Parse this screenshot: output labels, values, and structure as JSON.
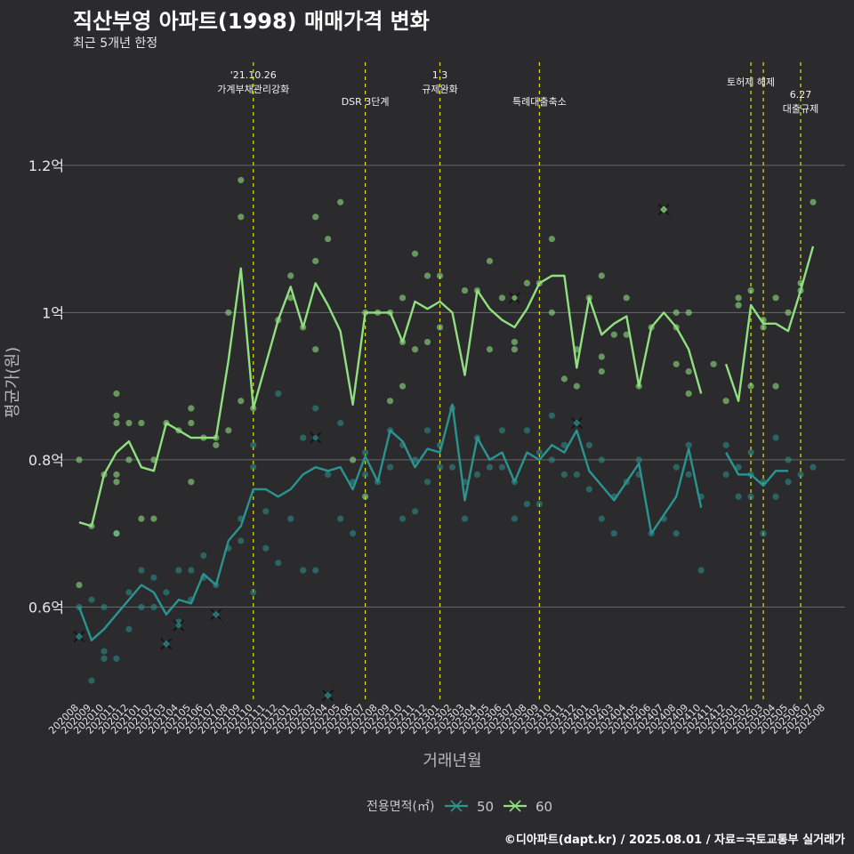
{
  "title": "직산부영 아파트(1998) 매매가격 변화",
  "subtitle": "최근 5개년 한정",
  "caption": "©디아파트(dapt.kr) / 2025.08.01 / 자료=국토교통부 실거래가",
  "chart_data": {
    "type": "line",
    "xlabel": "거래년월",
    "ylabel": "평균가(원)",
    "ylim": [
      0.47,
      1.34
    ],
    "y_unit": "억",
    "yticks": [
      0.6,
      0.8,
      1.0,
      1.2
    ],
    "ytick_labels": [
      "0.6억",
      "0.8억",
      "1억",
      "1.2억"
    ],
    "x": [
      "202008",
      "202009",
      "202010",
      "202011",
      "202012",
      "202101",
      "202102",
      "202103",
      "202104",
      "202105",
      "202106",
      "202107",
      "202108",
      "202109",
      "202110",
      "202111",
      "202112",
      "202201",
      "202202",
      "202203",
      "202204",
      "202205",
      "202206",
      "202207",
      "202208",
      "202209",
      "202210",
      "202211",
      "202212",
      "202301",
      "202302",
      "202303",
      "202304",
      "202305",
      "202306",
      "202307",
      "202308",
      "202309",
      "202310",
      "202311",
      "202312",
      "202401",
      "202402",
      "202403",
      "202404",
      "202405",
      "202406",
      "202407",
      "202408",
      "202409",
      "202410",
      "202411",
      "202412",
      "202501",
      "202502",
      "202503",
      "202504",
      "202505",
      "202506",
      "202507",
      "202508"
    ],
    "legend_title": "전용면적(㎡)",
    "legend_position": "bottom",
    "grid": true,
    "series": [
      {
        "name": "50",
        "color": "#2a9490",
        "values": [
          0.6,
          0.555,
          0.57,
          0.59,
          0.61,
          0.63,
          0.62,
          0.59,
          0.61,
          0.605,
          0.645,
          0.63,
          0.69,
          0.71,
          0.76,
          0.76,
          0.75,
          0.76,
          0.78,
          0.79,
          0.785,
          0.79,
          0.76,
          0.805,
          0.77,
          0.84,
          0.825,
          0.79,
          0.815,
          0.81,
          0.875,
          0.745,
          0.83,
          0.8,
          0.81,
          0.77,
          0.81,
          0.8,
          0.82,
          0.81,
          0.84,
          0.785,
          0.765,
          0.745,
          0.77,
          0.795,
          0.7,
          0.725,
          0.75,
          0.815,
          0.735,
          null,
          0.81,
          0.78,
          0.78,
          0.765,
          0.785,
          0.785,
          null,
          null,
          null
        ]
      },
      {
        "name": "60",
        "color": "#90e080",
        "values": [
          0.715,
          0.71,
          0.78,
          0.81,
          0.825,
          0.79,
          0.785,
          0.85,
          0.84,
          0.83,
          0.83,
          0.83,
          0.935,
          1.06,
          0.87,
          0.93,
          0.99,
          1.035,
          0.98,
          1.04,
          1.01,
          0.975,
          0.875,
          1.0,
          1.0,
          1.0,
          0.96,
          1.015,
          1.005,
          1.015,
          1.0,
          0.915,
          1.03,
          1.005,
          0.99,
          0.98,
          1.005,
          1.04,
          1.05,
          1.05,
          0.925,
          1.02,
          0.97,
          0.985,
          0.995,
          0.9,
          0.98,
          1.0,
          0.98,
          0.95,
          0.89,
          null,
          0.93,
          0.88,
          1.01,
          0.985,
          0.985,
          0.975,
          1.03,
          1.09,
          null
        ]
      }
    ],
    "scatter_points_50": [
      [
        0,
        0.6
      ],
      [
        0,
        0.56
      ],
      [
        1,
        0.5
      ],
      [
        1,
        0.61
      ],
      [
        2,
        0.53
      ],
      [
        2,
        0.54
      ],
      [
        2,
        0.6
      ],
      [
        3,
        0.53
      ],
      [
        3,
        0.7
      ],
      [
        4,
        0.57
      ],
      [
        4,
        0.62
      ],
      [
        5,
        0.6
      ],
      [
        5,
        0.65
      ],
      [
        6,
        0.6
      ],
      [
        6,
        0.64
      ],
      [
        7,
        0.55
      ],
      [
        7,
        0.62
      ],
      [
        8,
        0.58
      ],
      [
        8,
        0.65
      ],
      [
        9,
        0.61
      ],
      [
        9,
        0.65
      ],
      [
        10,
        0.64
      ],
      [
        10,
        0.67
      ],
      [
        11,
        0.59
      ],
      [
        11,
        0.63
      ],
      [
        12,
        0.68
      ],
      [
        13,
        0.69
      ],
      [
        13,
        0.72
      ],
      [
        14,
        0.62
      ],
      [
        14,
        0.79
      ],
      [
        14,
        0.82
      ],
      [
        15,
        0.68
      ],
      [
        15,
        0.73
      ],
      [
        16,
        0.66
      ],
      [
        16,
        0.89
      ],
      [
        17,
        0.72
      ],
      [
        18,
        0.65
      ],
      [
        18,
        0.83
      ],
      [
        19,
        0.65
      ],
      [
        19,
        0.87
      ],
      [
        20,
        0.48
      ],
      [
        20,
        0.78
      ],
      [
        21,
        0.72
      ],
      [
        21,
        0.85
      ],
      [
        22,
        0.7
      ],
      [
        22,
        0.77
      ],
      [
        23,
        0.78
      ],
      [
        23,
        0.81
      ],
      [
        24,
        0.77
      ],
      [
        25,
        0.79
      ],
      [
        25,
        0.84
      ],
      [
        26,
        0.72
      ],
      [
        26,
        0.82
      ],
      [
        27,
        0.73
      ],
      [
        27,
        0.8
      ],
      [
        28,
        0.77
      ],
      [
        28,
        0.84
      ],
      [
        29,
        0.79
      ],
      [
        29,
        0.82
      ],
      [
        30,
        0.79
      ],
      [
        30,
        0.87
      ],
      [
        31,
        0.72
      ],
      [
        31,
        0.77
      ],
      [
        32,
        0.78
      ],
      [
        32,
        0.83
      ],
      [
        33,
        0.79
      ],
      [
        34,
        0.79
      ],
      [
        34,
        0.84
      ],
      [
        35,
        0.72
      ],
      [
        35,
        0.77
      ],
      [
        36,
        0.74
      ],
      [
        36,
        0.84
      ],
      [
        37,
        0.74
      ],
      [
        37,
        0.81
      ],
      [
        38,
        0.8
      ],
      [
        38,
        0.86
      ],
      [
        39,
        0.78
      ],
      [
        39,
        0.82
      ],
      [
        40,
        0.78
      ],
      [
        40,
        0.85
      ],
      [
        41,
        0.76
      ],
      [
        41,
        0.82
      ],
      [
        42,
        0.72
      ],
      [
        42,
        0.8
      ],
      [
        43,
        0.7
      ],
      [
        43,
        0.75
      ],
      [
        44,
        0.77
      ],
      [
        45,
        0.78
      ],
      [
        45,
        0.8
      ],
      [
        46,
        0.7
      ],
      [
        47,
        0.72
      ],
      [
        48,
        0.7
      ],
      [
        48,
        0.79
      ],
      [
        49,
        0.78
      ],
      [
        49,
        0.82
      ],
      [
        50,
        0.65
      ],
      [
        50,
        0.75
      ],
      [
        52,
        0.78
      ],
      [
        52,
        0.82
      ],
      [
        53,
        0.75
      ],
      [
        53,
        0.79
      ],
      [
        54,
        0.75
      ],
      [
        54,
        0.78
      ],
      [
        54,
        0.81
      ],
      [
        55,
        0.7
      ],
      [
        55,
        0.77
      ],
      [
        56,
        0.75
      ],
      [
        56,
        0.83
      ],
      [
        57,
        0.77
      ],
      [
        57,
        0.8
      ],
      [
        58,
        0.78
      ],
      [
        59,
        0.79
      ]
    ],
    "scatter_points_60": [
      [
        0,
        0.8
      ],
      [
        0,
        0.63
      ],
      [
        1,
        0.71
      ],
      [
        2,
        0.78
      ],
      [
        3,
        0.7
      ],
      [
        3,
        0.77
      ],
      [
        3,
        0.78
      ],
      [
        3,
        0.85
      ],
      [
        3,
        0.86
      ],
      [
        3,
        0.89
      ],
      [
        4,
        0.8
      ],
      [
        4,
        0.85
      ],
      [
        5,
        0.72
      ],
      [
        5,
        0.85
      ],
      [
        6,
        0.72
      ],
      [
        6,
        0.8
      ],
      [
        7,
        0.85
      ],
      [
        8,
        0.84
      ],
      [
        9,
        0.77
      ],
      [
        9,
        0.85
      ],
      [
        9,
        0.87
      ],
      [
        10,
        0.83
      ],
      [
        11,
        0.82
      ],
      [
        11,
        0.83
      ],
      [
        12,
        0.84
      ],
      [
        12,
        1.0
      ],
      [
        13,
        1.18
      ],
      [
        13,
        1.13
      ],
      [
        13,
        0.88
      ],
      [
        14,
        0.87
      ],
      [
        16,
        0.99
      ],
      [
        17,
        1.02
      ],
      [
        17,
        1.05
      ],
      [
        18,
        0.98
      ],
      [
        19,
        0.95
      ],
      [
        19,
        1.07
      ],
      [
        19,
        1.13
      ],
      [
        20,
        1.1
      ],
      [
        21,
        1.15
      ],
      [
        22,
        0.8
      ],
      [
        23,
        0.75
      ],
      [
        23,
        1.0
      ],
      [
        24,
        1.0
      ],
      [
        25,
        1.0
      ],
      [
        25,
        0.88
      ],
      [
        26,
        0.9
      ],
      [
        26,
        0.96
      ],
      [
        26,
        1.02
      ],
      [
        27,
        0.95
      ],
      [
        27,
        1.08
      ],
      [
        28,
        0.96
      ],
      [
        28,
        1.05
      ],
      [
        29,
        1.05
      ],
      [
        29,
        0.98
      ],
      [
        31,
        1.03
      ],
      [
        32,
        1.03
      ],
      [
        33,
        0.95
      ],
      [
        33,
        1.07
      ],
      [
        34,
        1.02
      ],
      [
        35,
        0.95
      ],
      [
        35,
        0.96
      ],
      [
        36,
        1.04
      ],
      [
        37,
        1.04
      ],
      [
        38,
        1.1
      ],
      [
        38,
        1.0
      ],
      [
        39,
        0.91
      ],
      [
        40,
        0.95
      ],
      [
        40,
        0.9
      ],
      [
        41,
        1.02
      ],
      [
        42,
        0.92
      ],
      [
        42,
        0.94
      ],
      [
        42,
        1.05
      ],
      [
        43,
        0.97
      ],
      [
        44,
        1.02
      ],
      [
        44,
        0.97
      ],
      [
        45,
        0.9
      ],
      [
        46,
        0.98
      ],
      [
        47,
        1.14
      ],
      [
        48,
        0.98
      ],
      [
        48,
        1.0
      ],
      [
        48,
        0.93
      ],
      [
        49,
        0.92
      ],
      [
        49,
        0.89
      ],
      [
        49,
        1.0
      ],
      [
        51,
        0.93
      ],
      [
        52,
        0.88
      ],
      [
        53,
        1.02
      ],
      [
        53,
        1.01
      ],
      [
        54,
        1.03
      ],
      [
        54,
        0.9
      ],
      [
        55,
        0.99
      ],
      [
        55,
        0.98
      ],
      [
        56,
        0.9
      ],
      [
        56,
        1.02
      ],
      [
        57,
        1.0
      ],
      [
        58,
        1.03
      ],
      [
        58,
        1.04
      ],
      [
        59,
        1.15
      ]
    ],
    "outliers_50": [
      [
        0,
        0.56
      ],
      [
        7,
        0.55
      ],
      [
        8,
        0.575
      ],
      [
        11,
        0.59
      ],
      [
        19,
        0.83
      ],
      [
        20,
        0.48
      ],
      [
        40,
        0.85
      ]
    ],
    "outliers_60": [
      [
        35,
        1.02
      ],
      [
        47,
        1.14
      ]
    ],
    "events": [
      {
        "index": 14,
        "label": "'21.10.26\n가계부채관리강화"
      },
      {
        "index": 23,
        "label": "DSR 3단계"
      },
      {
        "index": 29,
        "label": "1.3\n규제완화"
      },
      {
        "index": 37,
        "label": "특례대출축소"
      },
      {
        "index": 54,
        "label": "토허제 해제"
      },
      {
        "index": 55,
        "label": ""
      },
      {
        "index": 58,
        "label": "6.27\n대출규제"
      }
    ]
  }
}
